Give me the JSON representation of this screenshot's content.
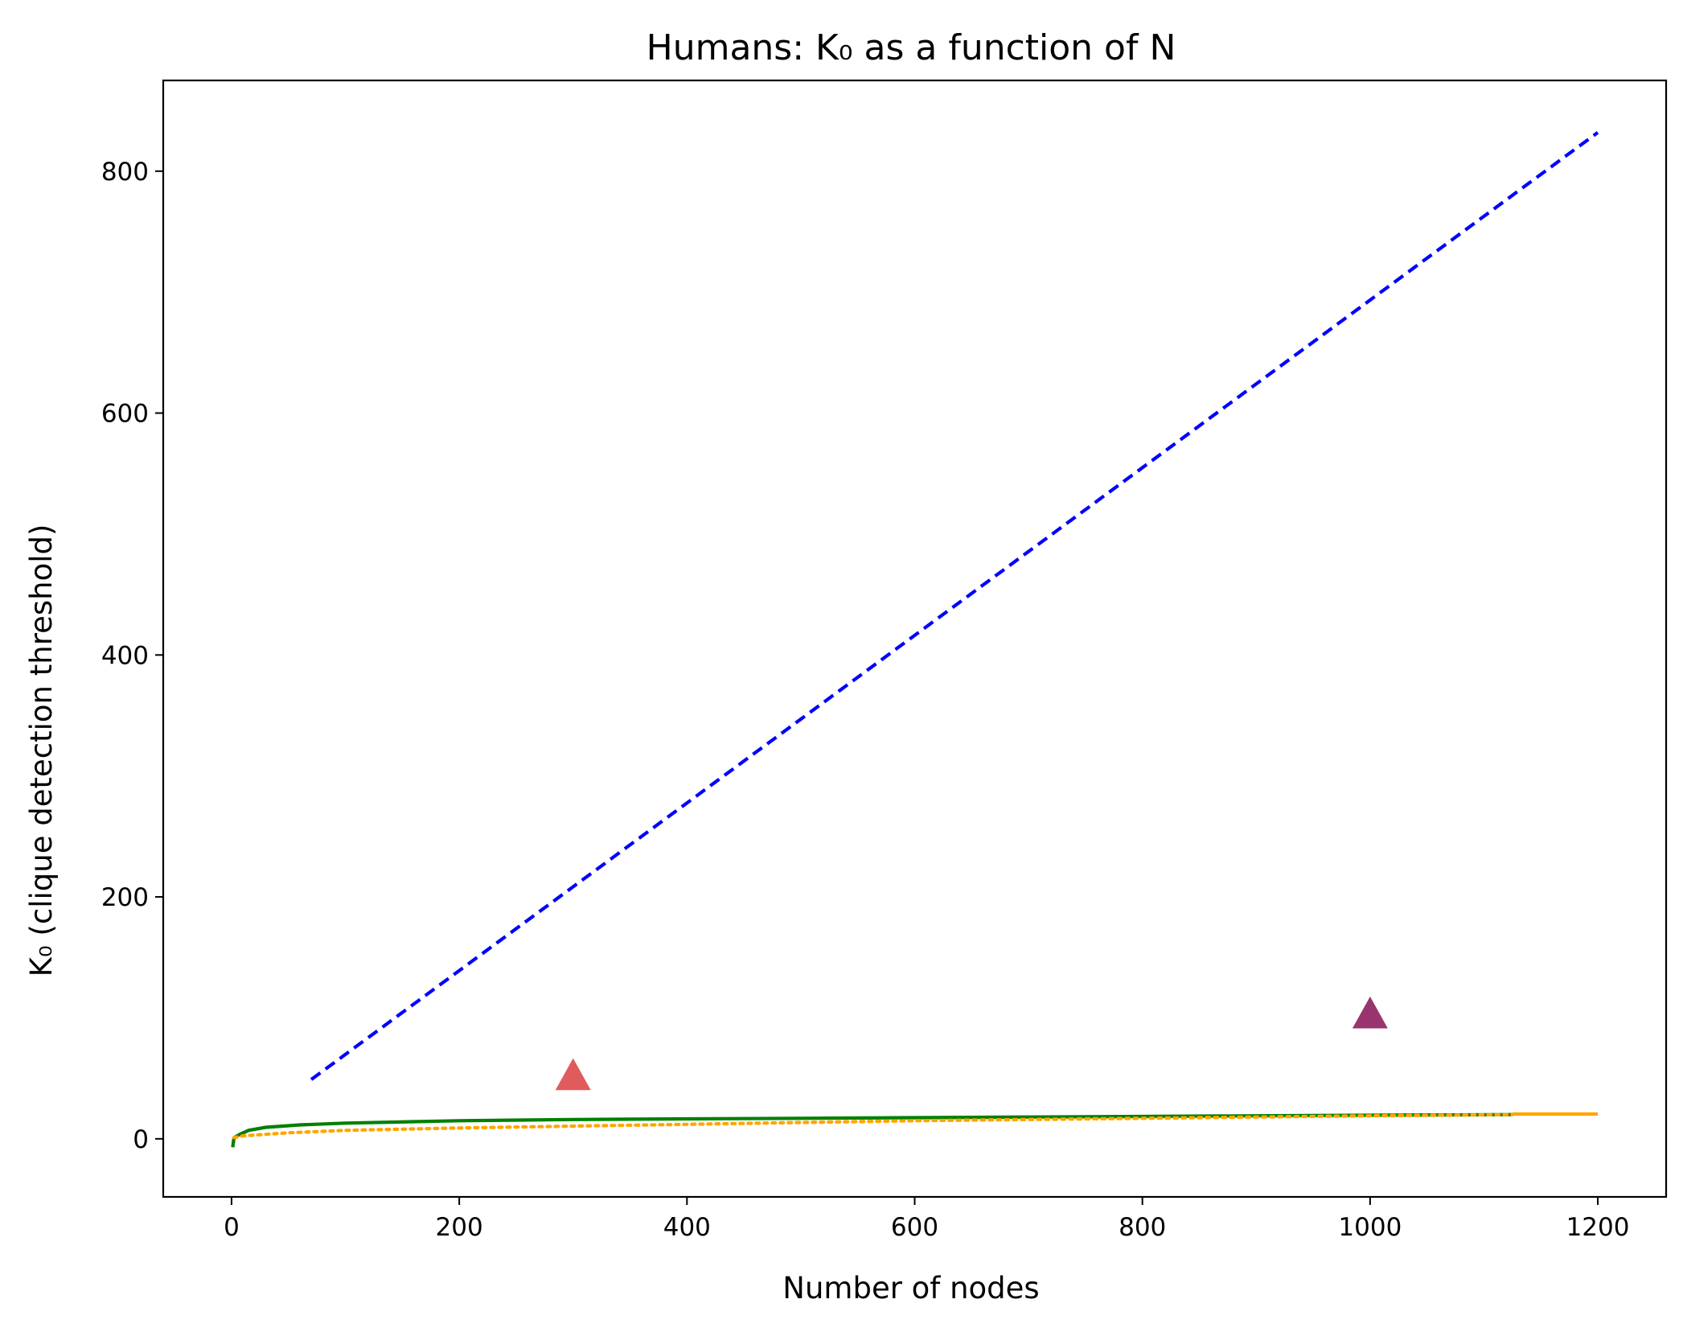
{
  "chart_data": {
    "type": "line",
    "title": "Humans: K₀ as a function of N",
    "xlabel": "Number of nodes",
    "ylabel": "K₀ (clique detection threshold)",
    "xlim": [
      -60,
      1260
    ],
    "ylim": [
      -48,
      875
    ],
    "xticks": [
      0,
      200,
      400,
      600,
      800,
      1000,
      1200
    ],
    "yticks": [
      0,
      200,
      400,
      600,
      800
    ],
    "grid": false,
    "series": [
      {
        "style": "dashed",
        "color": "#0000ff",
        "x": [
          70,
          1200
        ],
        "y": [
          49,
          832
        ]
      },
      {
        "style": "solid",
        "color": "#008000",
        "x": [
          1,
          2,
          4,
          8,
          15,
          30,
          60,
          100,
          200,
          300,
          400,
          500,
          600,
          700,
          800,
          900,
          1000,
          1125
        ],
        "y": [
          -7,
          0,
          2,
          4,
          7,
          9.5,
          11.5,
          13,
          15,
          16,
          16.5,
          17,
          17.5,
          18,
          18.5,
          19,
          19.5,
          20
        ]
      },
      {
        "style": "dotted",
        "color": "#ffa500",
        "x": [
          2,
          10,
          50,
          100,
          200,
          300,
          400,
          500,
          600,
          700,
          800,
          900,
          1000,
          1125
        ],
        "y": [
          1,
          2.5,
          5,
          7,
          9,
          10.5,
          12,
          13.5,
          15,
          16,
          17,
          18,
          19,
          20
        ]
      },
      {
        "style": "solid",
        "color": "#ffa500",
        "x": [
          1125,
          1200
        ],
        "y": [
          20.5,
          20.5
        ]
      }
    ],
    "markers": [
      {
        "shape": "triangle",
        "color": "#e05c5c",
        "x": 300,
        "y": 52
      },
      {
        "shape": "triangle",
        "color": "#98356e",
        "x": 1000,
        "y": 103
      }
    ]
  }
}
